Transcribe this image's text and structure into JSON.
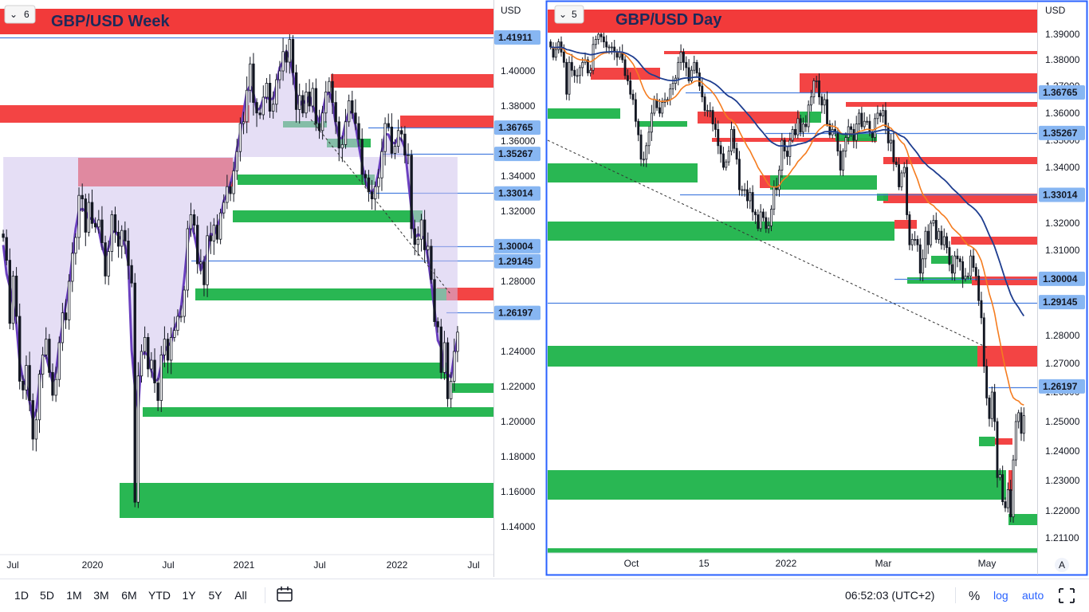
{
  "toolbar": {
    "ranges": [
      "1D",
      "5D",
      "1M",
      "3M",
      "6M",
      "YTD",
      "1Y",
      "5Y",
      "All"
    ],
    "clock": "06:52:03 (UTC+2)",
    "percent": "%",
    "log": "log",
    "auto": "auto"
  },
  "colors": {
    "red_zone": "#f23a3a",
    "green_zone": "#1db34a",
    "purple_line": "#6a3fbf",
    "purple_fill": "#cfc3ec",
    "blue_line": "#4a7fe0",
    "price_tag": "#87b6f2",
    "ema_orange": "#f57c1f",
    "ema_navy": "#1e3d8f"
  },
  "chart_data": [
    {
      "id": "week",
      "type": "candlestick",
      "title": "GBP/USD Week",
      "badge": "6",
      "currency": "USD",
      "x_ticks": [
        "Jul",
        "2020",
        "Jul",
        "2021",
        "Jul",
        "2022",
        "Jul"
      ],
      "y_ticks": [
        "1.40000",
        "1.38000",
        "1.36000",
        "1.34000",
        "1.32000",
        "1.28000",
        "1.24000",
        "1.22000",
        "1.20000",
        "1.18000",
        "1.16000",
        "1.14000"
      ],
      "ylim": [
        1.135,
        1.435
      ],
      "price_labels": [
        "1.41911",
        "1.36765",
        "1.35267",
        "1.33014",
        "1.30004",
        "1.29145",
        "1.26197"
      ],
      "closes": [
        1.305,
        1.292,
        1.256,
        1.283,
        1.26,
        1.223,
        1.218,
        1.232,
        1.212,
        1.19,
        1.201,
        1.227,
        1.238,
        1.247,
        1.228,
        1.215,
        1.224,
        1.245,
        1.262,
        1.258,
        1.28,
        1.296,
        1.305,
        1.329,
        1.327,
        1.308,
        1.325,
        1.313,
        1.311,
        1.315,
        1.302,
        1.283,
        1.297,
        1.318,
        1.308,
        1.3,
        1.309,
        1.303,
        1.289,
        1.279,
        1.154,
        1.226,
        1.24,
        1.248,
        1.23,
        1.235,
        1.222,
        1.212,
        1.238,
        1.247,
        1.235,
        1.248,
        1.252,
        1.26,
        1.26,
        1.275,
        1.31,
        1.318,
        1.312,
        1.29,
        1.291,
        1.278,
        1.306,
        1.303,
        1.312,
        1.304,
        1.319,
        1.325,
        1.334,
        1.33,
        1.343,
        1.354,
        1.37,
        1.371,
        1.389,
        1.404,
        1.382,
        1.376,
        1.375,
        1.385,
        1.393,
        1.377,
        1.381,
        1.395,
        1.4,
        1.411,
        1.405,
        1.418,
        1.399,
        1.378,
        1.386,
        1.376,
        1.388,
        1.38,
        1.39,
        1.37,
        1.366,
        1.376,
        1.388,
        1.394,
        1.382,
        1.371,
        1.356,
        1.358,
        1.371,
        1.383,
        1.376,
        1.37,
        1.361,
        1.341,
        1.339,
        1.331,
        1.327,
        1.334,
        1.339,
        1.354,
        1.37,
        1.368,
        1.353,
        1.357,
        1.366,
        1.364,
        1.352,
        1.352,
        1.31,
        1.301,
        1.304,
        1.315,
        1.298,
        1.3,
        1.281,
        1.257,
        1.254,
        1.228,
        1.245,
        1.213,
        1.223,
        1.24,
        1.251
      ]
    },
    {
      "id": "day",
      "type": "candlestick",
      "title": "GBP/USD Day",
      "badge": "5",
      "currency": "USD",
      "x_ticks": [
        "Oct",
        "15",
        "2022",
        "Mar",
        "May"
      ],
      "y_ticks": [
        "1.39000",
        "1.38000",
        "1.37000",
        "1.36000",
        "1.35000",
        "1.34000",
        "1.33000",
        "1.32000",
        "1.31000",
        "1.30000",
        "1.29000",
        "1.28000",
        "1.27000",
        "1.26000",
        "1.25000",
        "1.24000",
        "1.23000",
        "1.22000",
        "1.21100"
      ],
      "ylim": [
        1.206,
        1.395
      ],
      "price_labels": [
        "1.36765",
        "1.35267",
        "1.33014",
        "1.30004",
        "1.29145",
        "1.26197"
      ],
      "closes": [
        1.385,
        1.381,
        1.384,
        1.387,
        1.383,
        1.379,
        1.367,
        1.379,
        1.376,
        1.374,
        1.374,
        1.377,
        1.379,
        1.38,
        1.375,
        1.376,
        1.386,
        1.388,
        1.39,
        1.389,
        1.387,
        1.385,
        1.385,
        1.385,
        1.383,
        1.381,
        1.383,
        1.38,
        1.374,
        1.372,
        1.367,
        1.365,
        1.357,
        1.352,
        1.343,
        1.343,
        1.348,
        1.353,
        1.36,
        1.365,
        1.362,
        1.36,
        1.364,
        1.365,
        1.365,
        1.369,
        1.371,
        1.373,
        1.379,
        1.383,
        1.379,
        1.377,
        1.372,
        1.376,
        1.379,
        1.375,
        1.37,
        1.366,
        1.361,
        1.361,
        1.361,
        1.356,
        1.354,
        1.348,
        1.345,
        1.34,
        1.342,
        1.346,
        1.354,
        1.347,
        1.343,
        1.332,
        1.332,
        1.332,
        1.328,
        1.331,
        1.324,
        1.323,
        1.318,
        1.324,
        1.322,
        1.318,
        1.319,
        1.325,
        1.333,
        1.332,
        1.339,
        1.35,
        1.346,
        1.344,
        1.35,
        1.354,
        1.352,
        1.358,
        1.353,
        1.356,
        1.355,
        1.363,
        1.366,
        1.372,
        1.372,
        1.366,
        1.363,
        1.365,
        1.356,
        1.352,
        1.354,
        1.353,
        1.346,
        1.339,
        1.346,
        1.351,
        1.355,
        1.354,
        1.35,
        1.356,
        1.36,
        1.355,
        1.357,
        1.357,
        1.353,
        1.351,
        1.358,
        1.36,
        1.359,
        1.361,
        1.355,
        1.349,
        1.35,
        1.342,
        1.341,
        1.333,
        1.338,
        1.34,
        1.323,
        1.312,
        1.314,
        1.314,
        1.312,
        1.302,
        1.307,
        1.317,
        1.312,
        1.32,
        1.321,
        1.314,
        1.317,
        1.312,
        1.315,
        1.311,
        1.305,
        1.302,
        1.308,
        1.307,
        1.306,
        1.3,
        1.301,
        1.301,
        1.308,
        1.304,
        1.301,
        1.292,
        1.286,
        1.269,
        1.258,
        1.251,
        1.26,
        1.25,
        1.231,
        1.232,
        1.223,
        1.221,
        1.227,
        1.218,
        1.237,
        1.25,
        1.253,
        1.246,
        1.252
      ]
    }
  ]
}
